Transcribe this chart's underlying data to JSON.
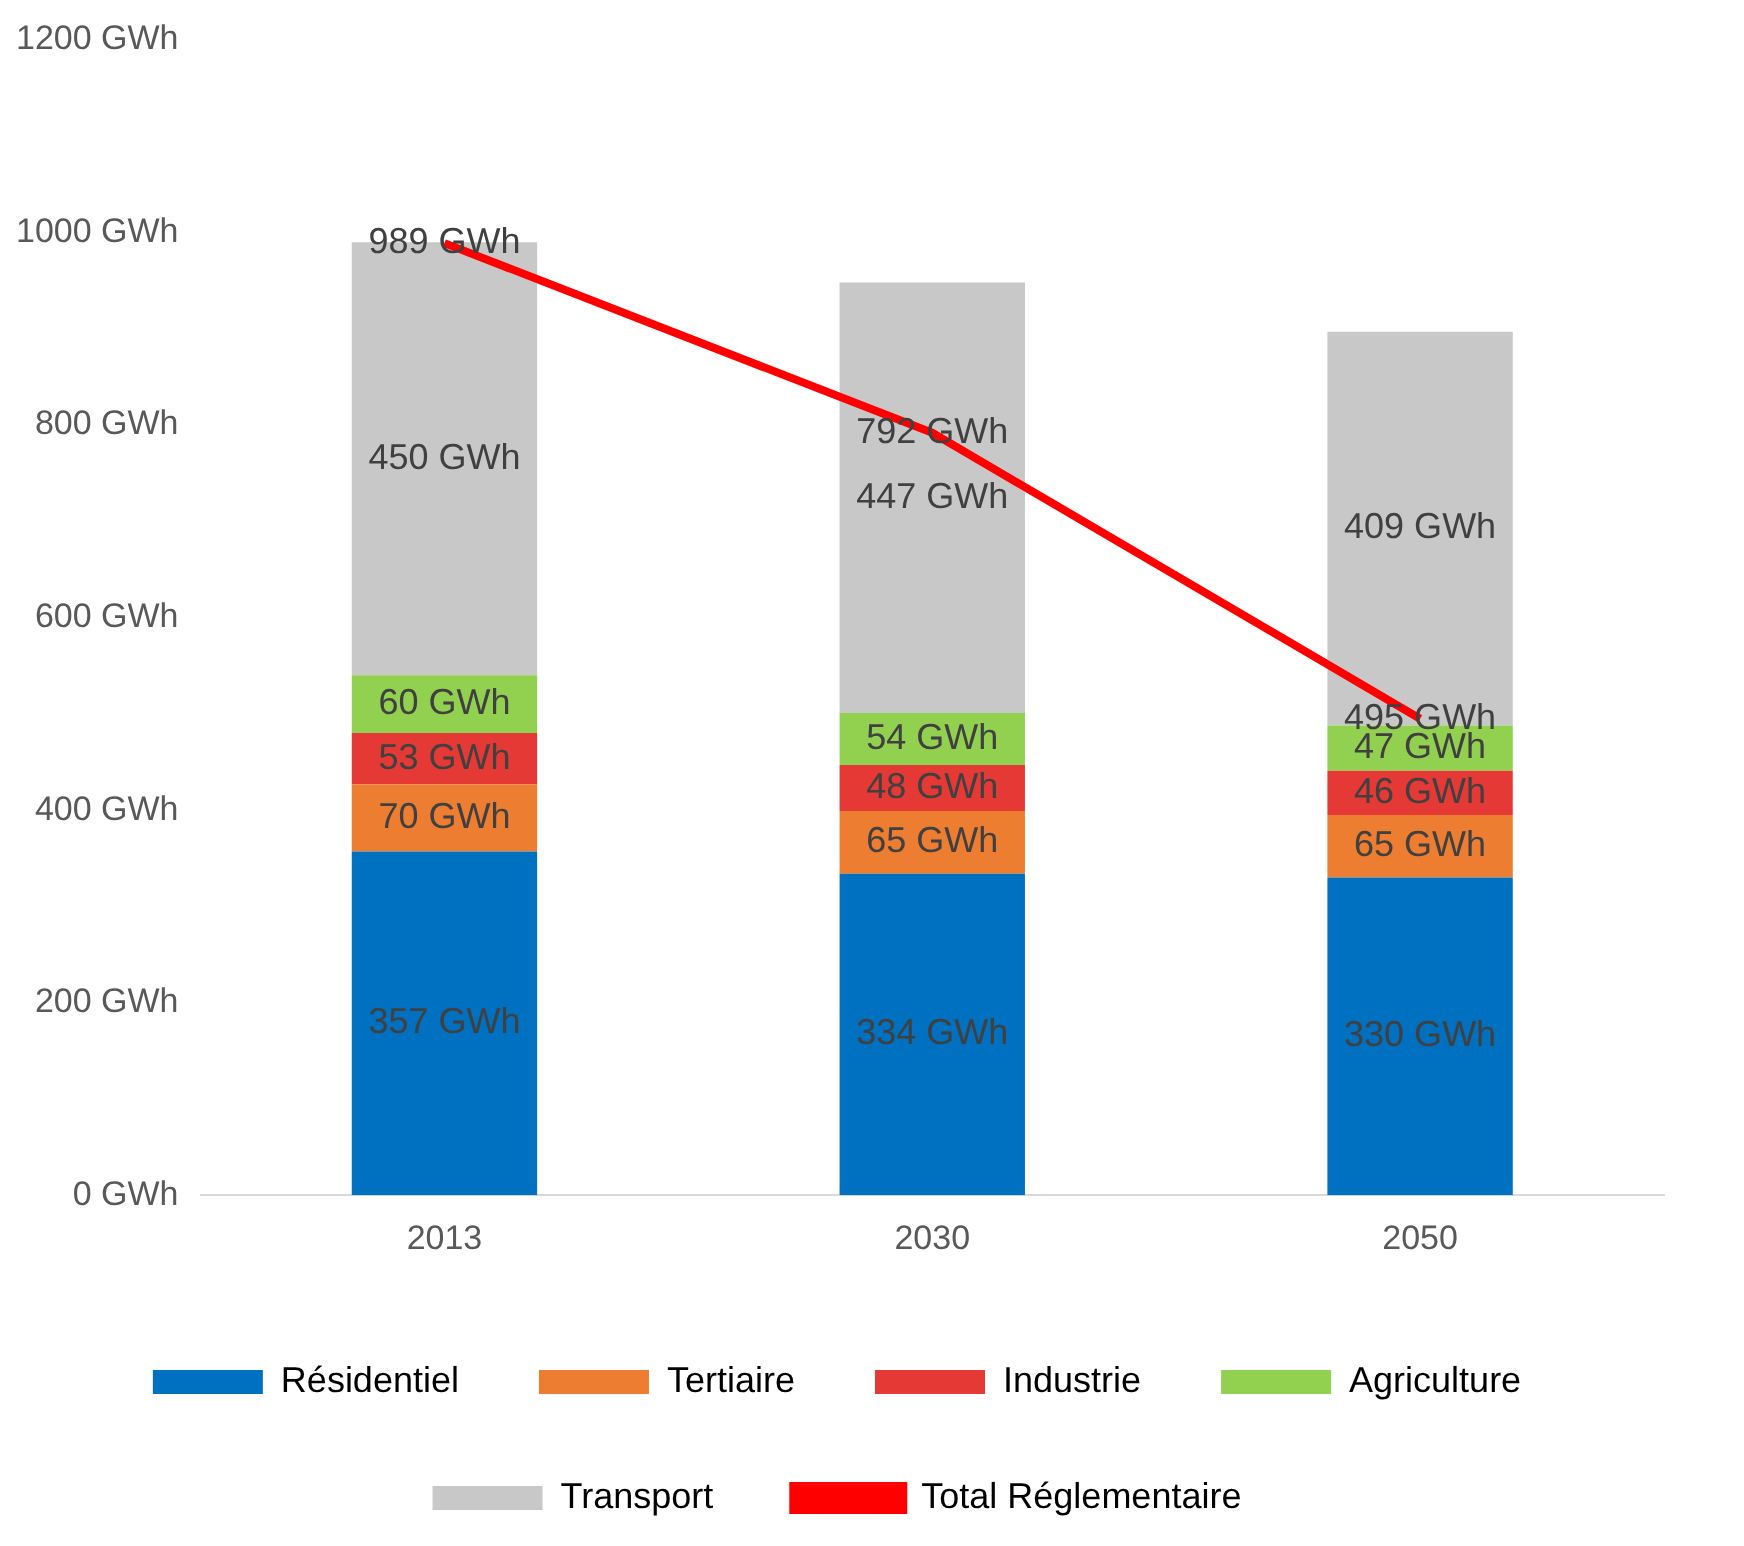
{
  "chart_data": {
    "type": "bar",
    "stacked": true,
    "categories": [
      "2013",
      "2030",
      "2050"
    ],
    "ylim": [
      0,
      1200
    ],
    "yticks": [
      {
        "value": 0,
        "label": "0 GWh"
      },
      {
        "value": 200,
        "label": "200 GWh"
      },
      {
        "value": 400,
        "label": "400 GWh"
      },
      {
        "value": 600,
        "label": "600 GWh"
      },
      {
        "value": 800,
        "label": "800 GWh"
      },
      {
        "value": 1000,
        "label": "1000 GWh"
      },
      {
        "value": 1200,
        "label": "1200 GWh"
      }
    ],
    "grid": false,
    "legend": "bottom",
    "series": [
      {
        "name": "Résidentiel",
        "color": "#0070c0",
        "values": [
          357,
          334,
          330
        ],
        "value_labels": [
          "357 GWh",
          "334 GWh",
          "330 GWh"
        ]
      },
      {
        "name": "Tertiaire",
        "color": "#ed7d31",
        "values": [
          70,
          65,
          65
        ],
        "value_labels": [
          "70 GWh",
          "65 GWh",
          "65 GWh"
        ]
      },
      {
        "name": "Industrie",
        "color": "#e53935",
        "values": [
          53,
          48,
          46
        ],
        "value_labels": [
          "53 GWh",
          "48 GWh",
          "46 GWh"
        ]
      },
      {
        "name": "Agriculture",
        "color": "#92d050",
        "values": [
          60,
          54,
          47
        ],
        "value_labels": [
          "60 GWh",
          "54 GWh",
          "47 GWh"
        ]
      },
      {
        "name": "Transport",
        "color": "#c8c8c8",
        "values": [
          450,
          447,
          409
        ],
        "value_labels": [
          "450 GWh",
          "447 GWh",
          "409 GWh"
        ]
      },
      {
        "name": "Total Réglementaire",
        "type": "line",
        "color": "#ff0000",
        "values": [
          989,
          792,
          495
        ],
        "value_labels": [
          "989 GWh",
          "792 GWh",
          "495 GWh"
        ]
      }
    ]
  }
}
